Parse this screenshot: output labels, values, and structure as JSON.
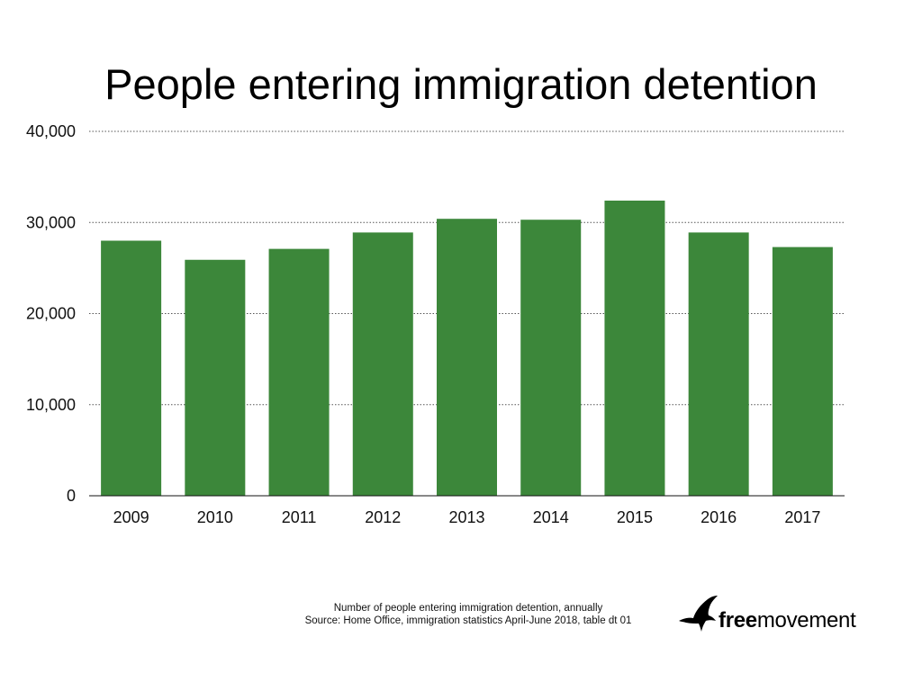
{
  "chart_data": {
    "type": "bar",
    "title": "People entering immigration detention",
    "categories": [
      "2009",
      "2010",
      "2011",
      "2012",
      "2013",
      "2014",
      "2015",
      "2016",
      "2017"
    ],
    "values": [
      28000,
      25900,
      27100,
      28900,
      30400,
      30300,
      32400,
      28900,
      27300
    ],
    "ylim": [
      0,
      40000
    ],
    "yticks": [
      0,
      10000,
      20000,
      30000,
      40000
    ],
    "ytick_labels": [
      "0",
      "10,000",
      "20,000",
      "30,000",
      "40,000"
    ],
    "xlabel": "",
    "ylabel": "",
    "grid": true,
    "bar_color": "#3c873a"
  },
  "caption": {
    "line1": "Number of people entering immigration detention, annually",
    "line2": "Source: Home Office, immigration statistics April-June 2018, table dt 01"
  },
  "logo": {
    "icon": "bird-icon",
    "part1": "free",
    "part2": "movement"
  }
}
